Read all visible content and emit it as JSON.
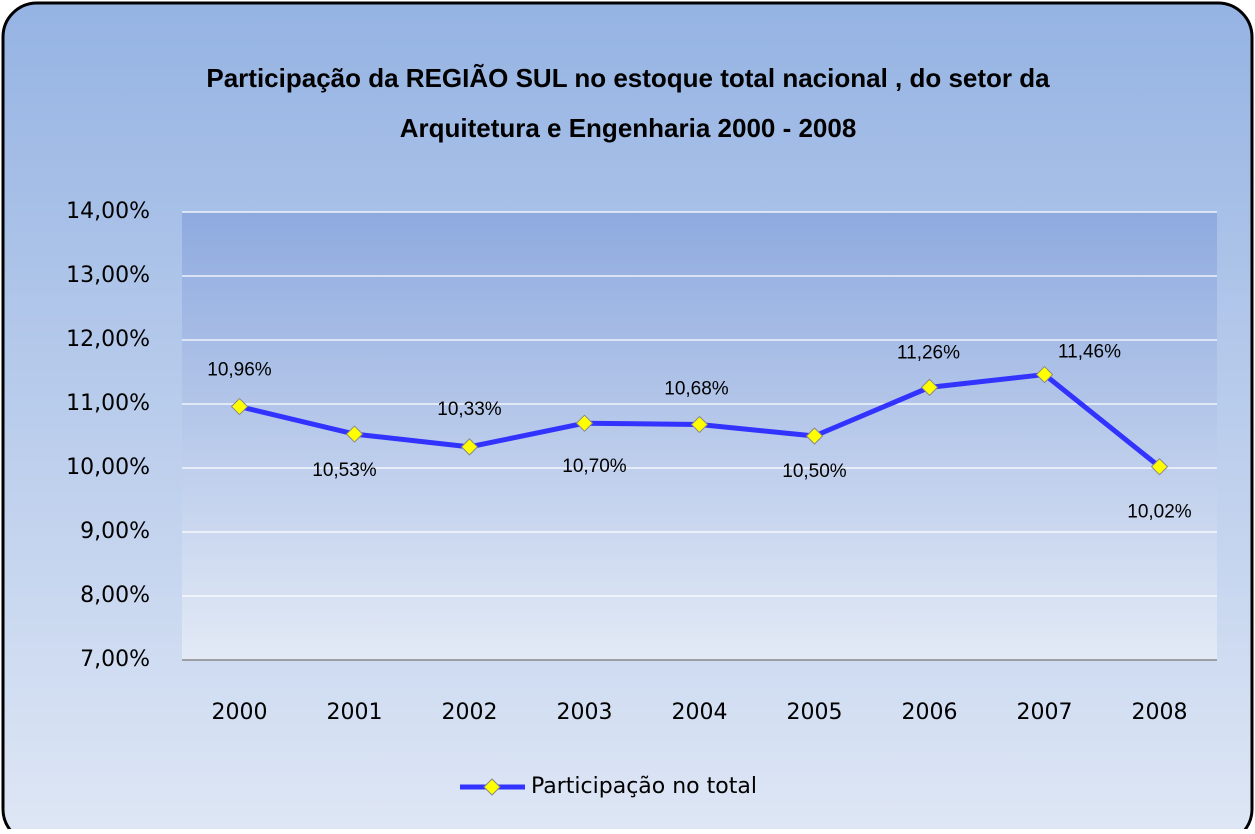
{
  "chart_data": {
    "type": "line",
    "title": [
      "Participação da REGIÃO SUL no estoque total nacional , do setor da",
      "Arquitetura e Engenharia 2000 - 2008"
    ],
    "categories": [
      "2000",
      "2001",
      "2002",
      "2003",
      "2004",
      "2005",
      "2006",
      "2007",
      "2008"
    ],
    "series": [
      {
        "name": "Participação no total",
        "color": "#3333ff",
        "marker_color": "#ffff00",
        "values": [
          10.96,
          10.53,
          10.33,
          10.7,
          10.68,
          10.5,
          11.26,
          11.46,
          10.02
        ],
        "value_labels": [
          "10,96%",
          "10,53%",
          "10,33%",
          "10,70%",
          "10,68%",
          "10,50%",
          "11,26%",
          "11,46%",
          "10,02%"
        ]
      }
    ],
    "ylim": [
      7,
      14
    ],
    "yticks": [
      {
        "value": 7,
        "label": "7,00%"
      },
      {
        "value": 8,
        "label": "8,00%"
      },
      {
        "value": 9,
        "label": "9,00%"
      },
      {
        "value": 10,
        "label": "10,00%"
      },
      {
        "value": 11,
        "label": "11,00%"
      },
      {
        "value": 12,
        "label": "12,00%"
      },
      {
        "value": 13,
        "label": "13,00%"
      },
      {
        "value": 14,
        "label": "14,00%"
      }
    ],
    "grid": true,
    "legend": "bottom"
  }
}
